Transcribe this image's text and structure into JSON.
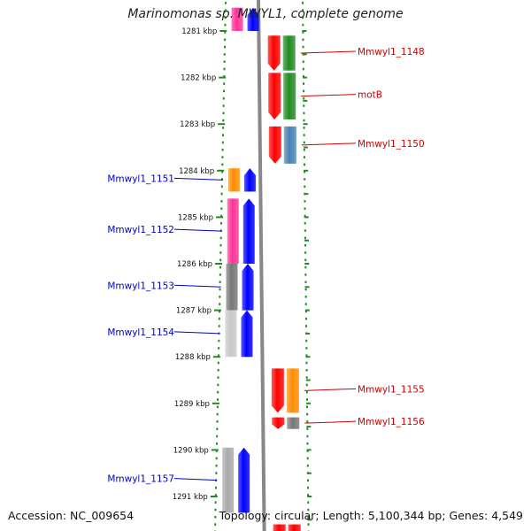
{
  "title": "Marinomonas sp. MWYL1, complete genome",
  "accession_text": "Accession: NC_009654",
  "summary_text": "Topology: circular; Length: 5,100,344 bp; Genes: 4,549",
  "colors": {
    "backbone": "#888888",
    "ruler": "#228b22",
    "left_label": "#0000cc",
    "right_label": "#cc0000",
    "protein_left": "#0000ff",
    "protein_right": "#228b22"
  },
  "scale": {
    "unit": "kbp",
    "ticks": [
      {
        "kbp": 1281,
        "label": "1281 kbp"
      },
      {
        "kbp": 1282,
        "label": "1282 kbp"
      },
      {
        "kbp": 1283,
        "label": "1283 kbp"
      },
      {
        "kbp": 1284,
        "label": "1284 kbp"
      },
      {
        "kbp": 1285,
        "label": "1285 kbp"
      },
      {
        "kbp": 1286,
        "label": "1286 kbp"
      },
      {
        "kbp": 1287,
        "label": "1287 kbp"
      },
      {
        "kbp": 1288,
        "label": "1288 kbp"
      },
      {
        "kbp": 1289,
        "label": "1289 kbp"
      },
      {
        "kbp": 1290,
        "label": "1290 kbp"
      },
      {
        "kbp": 1291,
        "label": "1291 kbp"
      }
    ]
  },
  "genes": [
    {
      "id": "top-partial-left",
      "strand": "left",
      "start_kbp": 1280.5,
      "end_kbp": 1281.0,
      "color": "#ff3399",
      "protein_color": "#0000ff",
      "label": ""
    },
    {
      "id": "Mmwyl1_1148",
      "strand": "right",
      "start_kbp": 1281.1,
      "end_kbp": 1281.85,
      "color": "#ff0000",
      "protein_color": "#228b22",
      "label": "Mmwyl1_1148"
    },
    {
      "id": "motB",
      "strand": "right",
      "start_kbp": 1281.9,
      "end_kbp": 1282.9,
      "color": "#ff0000",
      "protein_color": "#228b22",
      "label": "motB"
    },
    {
      "id": "Mmwyl1_1150",
      "strand": "right",
      "start_kbp": 1283.05,
      "end_kbp": 1283.85,
      "color": "#ff0000",
      "protein_color": "#4682b4",
      "label": "Mmwyl1_1150"
    },
    {
      "id": "Mmwyl1_1151",
      "strand": "left",
      "start_kbp": 1283.95,
      "end_kbp": 1284.45,
      "color": "#ff8c00",
      "protein_color": "#0000ff",
      "label": "Mmwyl1_1151"
    },
    {
      "id": "Mmwyl1_1152",
      "strand": "left",
      "start_kbp": 1284.6,
      "end_kbp": 1286.0,
      "color": "#ff3399",
      "protein_color": "#0000ff",
      "label": "Mmwyl1_1152"
    },
    {
      "id": "Mmwyl1_1153",
      "strand": "left",
      "start_kbp": 1286.0,
      "end_kbp": 1287.0,
      "color": "#777777",
      "protein_color": "#0000ff",
      "label": "Mmwyl1_1153"
    },
    {
      "id": "Mmwyl1_1154",
      "strand": "left",
      "start_kbp": 1287.0,
      "end_kbp": 1288.0,
      "color": "#c8c8c8",
      "protein_color": "#0000ff",
      "label": "Mmwyl1_1154"
    },
    {
      "id": "Mmwyl1_1155",
      "strand": "right",
      "start_kbp": 1288.25,
      "end_kbp": 1289.2,
      "color": "#ff0000",
      "protein_color": "#ff8c00",
      "label": "Mmwyl1_1155"
    },
    {
      "id": "Mmwyl1_1156",
      "strand": "right",
      "start_kbp": 1289.3,
      "end_kbp": 1289.55,
      "color": "#ff0000",
      "protein_color": "#777777",
      "label": "Mmwyl1_1156"
    },
    {
      "id": "Mmwyl1_1157",
      "strand": "left",
      "start_kbp": 1289.95,
      "end_kbp": 1291.35,
      "color": "#aaaaaa",
      "protein_color": "#0000ff",
      "label": "Mmwyl1_1157"
    },
    {
      "id": "bottom-partial-right",
      "strand": "right",
      "start_kbp": 1291.6,
      "end_kbp": 1292.0,
      "color": "#ff0000",
      "protein_color": "#ff0000",
      "label": ""
    }
  ]
}
